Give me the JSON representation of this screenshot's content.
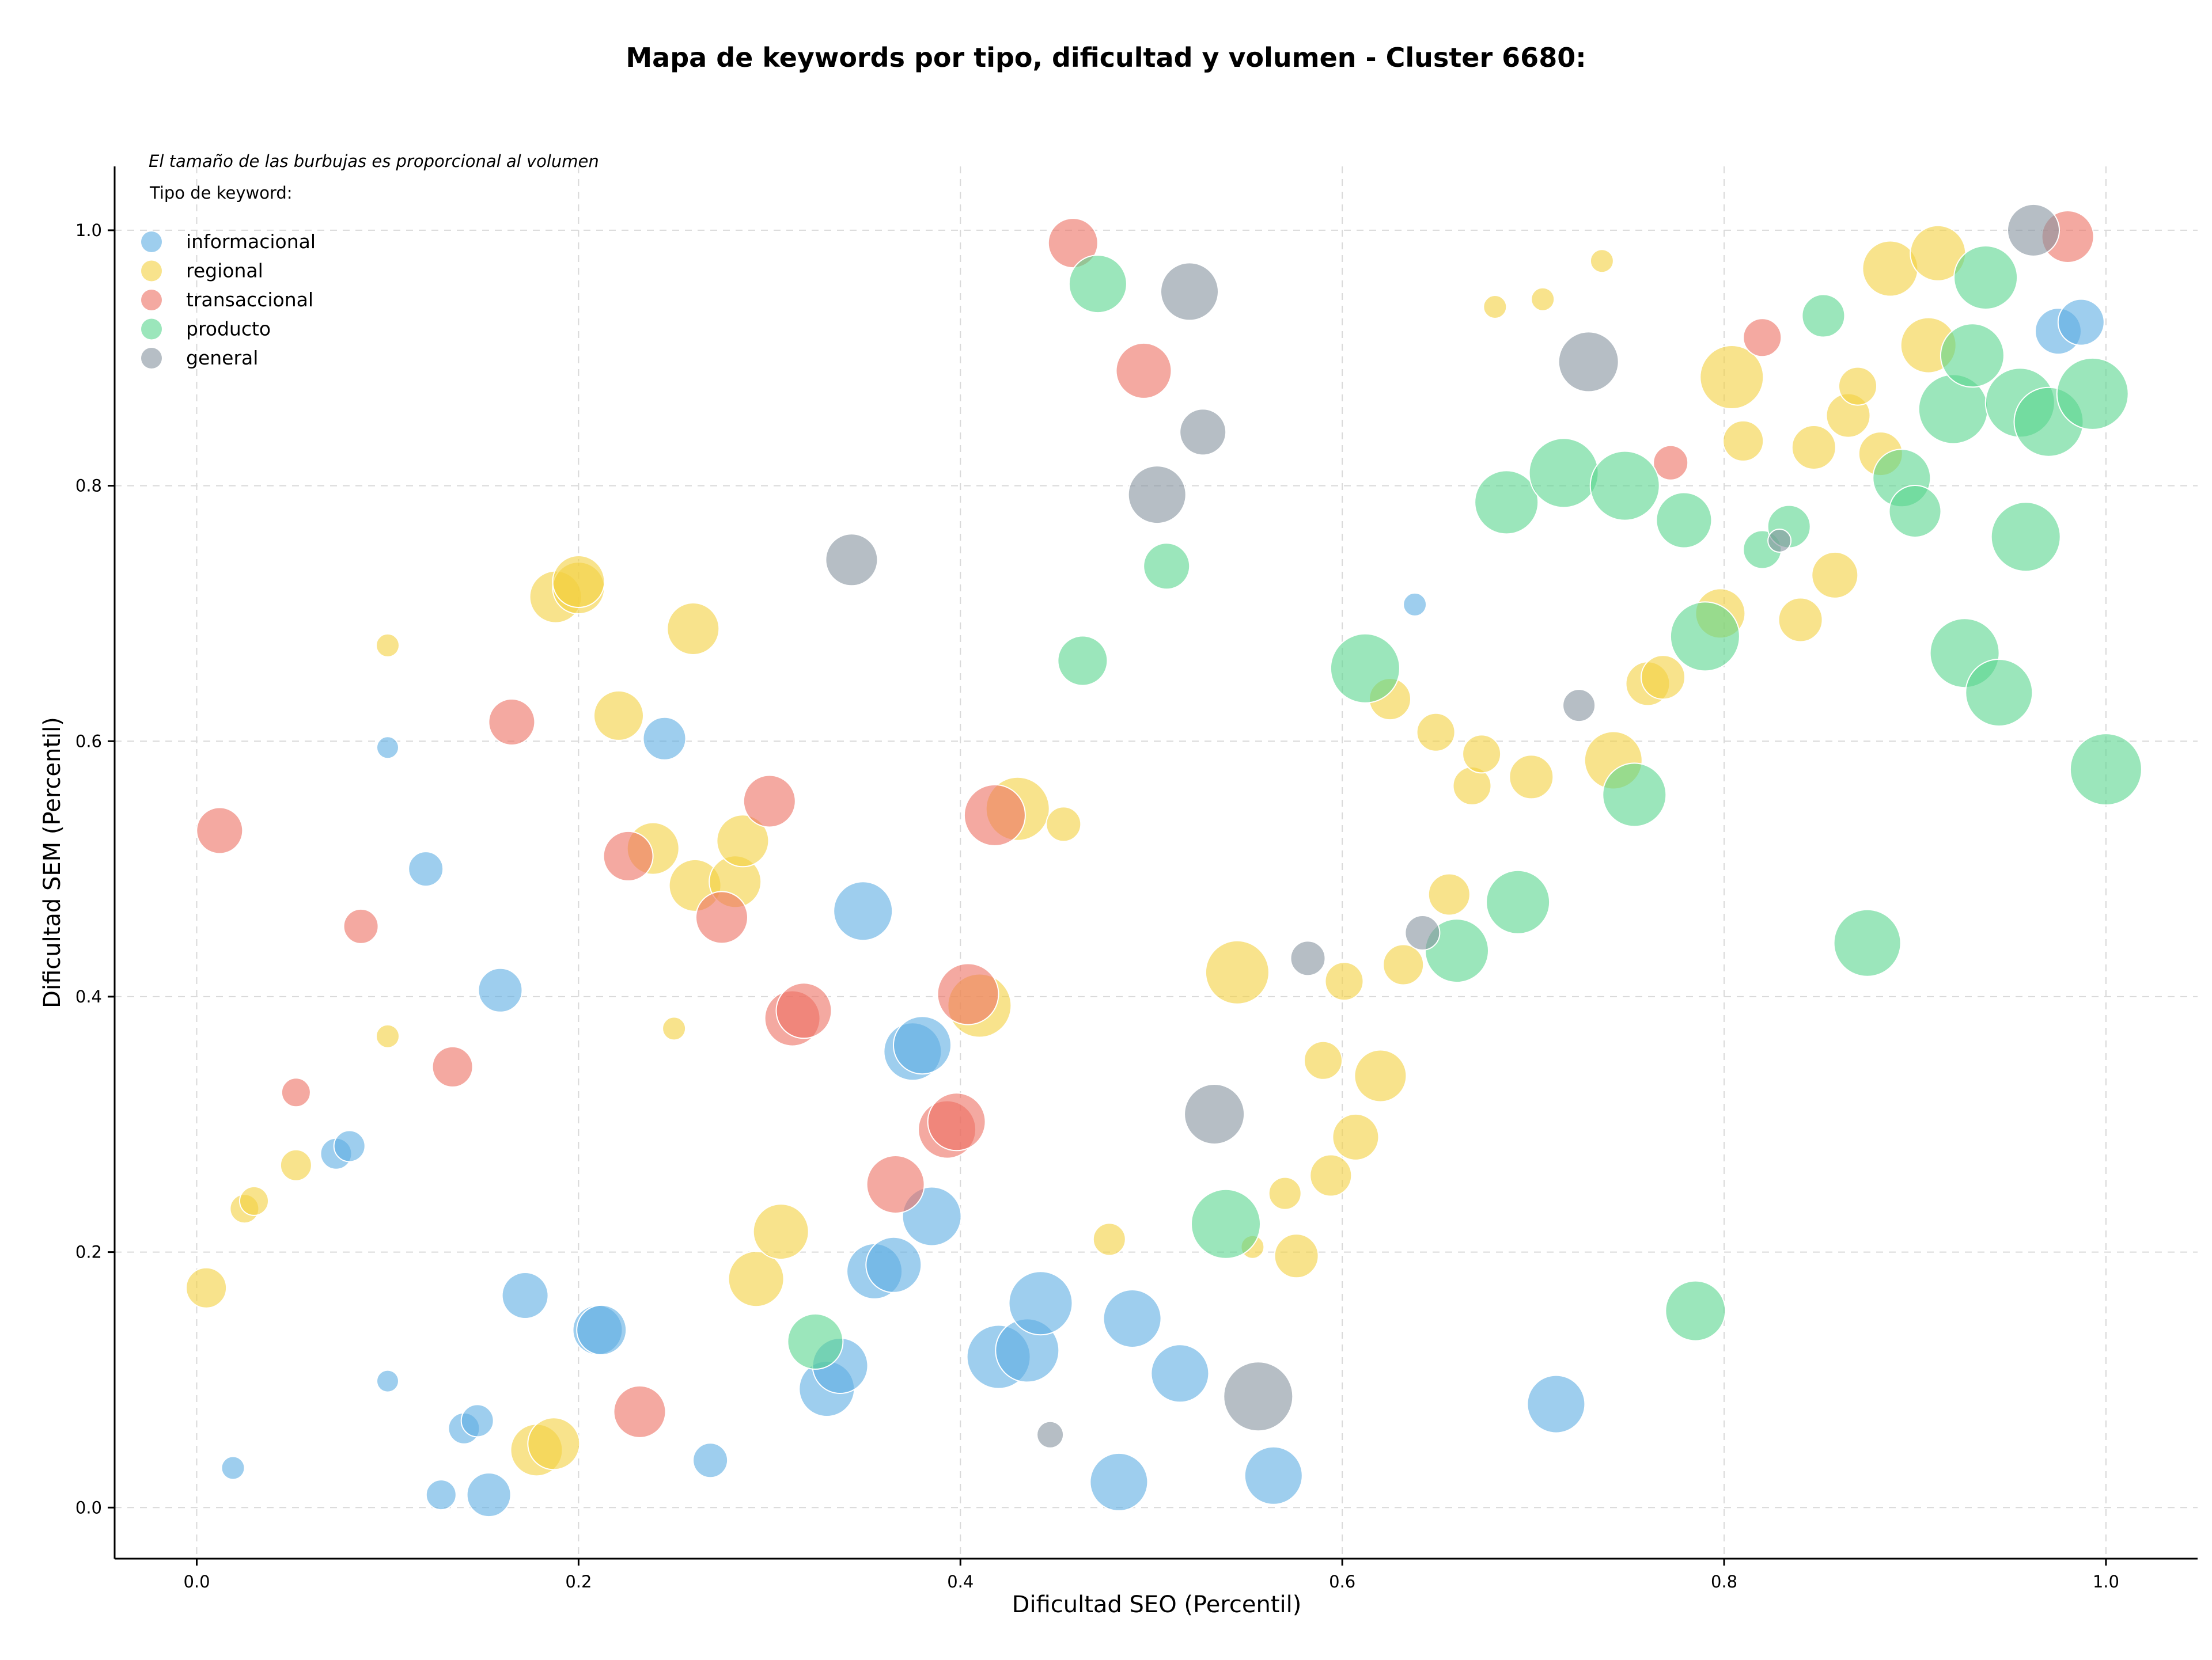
{
  "chart_data": {
    "type": "scatter",
    "title": "Mapa de keywords por tipo, dificultad y volumen - Cluster 6680:",
    "xlabel": "Dificultad SEO (Percentil)",
    "ylabel": "Dificultad SEM (Percentil)",
    "xlim": [
      -0.043,
      1.048
    ],
    "ylim": [
      -0.04,
      1.05
    ],
    "xticks": [
      0.0,
      0.2,
      0.4,
      0.6,
      0.8,
      1.0
    ],
    "yticks": [
      0.0,
      0.2,
      0.4,
      0.6,
      0.8,
      1.0
    ],
    "xtick_labels": [
      "0.0",
      "0.2",
      "0.4",
      "0.6",
      "0.8",
      "1.0"
    ],
    "ytick_labels": [
      "0.0",
      "0.2",
      "0.4",
      "0.6",
      "0.8",
      "1.0"
    ],
    "grid": true,
    "note": "El tamaño de las burbujas es proporcional al volumen",
    "legend_title": "Tipo de keyword:",
    "legend_position": "top-left",
    "series": [
      {
        "name": "informacional",
        "color": "#5DADE2",
        "points": [
          [
            0.019,
            0.031,
            20
          ],
          [
            0.1,
            0.595,
            19
          ],
          [
            0.1,
            0.099,
            19
          ],
          [
            0.12,
            0.5,
            30
          ],
          [
            0.073,
            0.277,
            27
          ],
          [
            0.08,
            0.283,
            27
          ],
          [
            0.128,
            0.01,
            26
          ],
          [
            0.14,
            0.062,
            27
          ],
          [
            0.147,
            0.068,
            28
          ],
          [
            0.153,
            0.01,
            38
          ],
          [
            0.159,
            0.405,
            38
          ],
          [
            0.172,
            0.166,
            40
          ],
          [
            0.21,
            0.139,
            43
          ],
          [
            0.212,
            0.139,
            43
          ],
          [
            0.245,
            0.602,
            37
          ],
          [
            0.269,
            0.037,
            30
          ],
          [
            0.33,
            0.093,
            48
          ],
          [
            0.337,
            0.111,
            48
          ],
          [
            0.349,
            0.467,
            51
          ],
          [
            0.355,
            0.185,
            48
          ],
          [
            0.365,
            0.19,
            48
          ],
          [
            0.375,
            0.357,
            50
          ],
          [
            0.38,
            0.362,
            50
          ],
          [
            0.385,
            0.228,
            51
          ],
          [
            0.42,
            0.118,
            55
          ],
          [
            0.435,
            0.123,
            55
          ],
          [
            0.442,
            0.16,
            55
          ],
          [
            0.483,
            0.02,
            50
          ],
          [
            0.49,
            0.148,
            50
          ],
          [
            0.515,
            0.105,
            50
          ],
          [
            0.564,
            0.025,
            50
          ],
          [
            0.638,
            0.707,
            20
          ],
          [
            0.712,
            0.081,
            50
          ],
          [
            0.975,
            0.921,
            40
          ],
          [
            0.987,
            0.928,
            40
          ]
        ]
      },
      {
        "name": "regional",
        "color": "#F4D03F",
        "points": [
          [
            0.005,
            0.172,
            35
          ],
          [
            0.025,
            0.234,
            25
          ],
          [
            0.03,
            0.24,
            25
          ],
          [
            0.052,
            0.268,
            27
          ],
          [
            0.1,
            0.675,
            20
          ],
          [
            0.1,
            0.369,
            20
          ],
          [
            0.178,
            0.045,
            45
          ],
          [
            0.187,
            0.05,
            45
          ],
          [
            0.188,
            0.713,
            45
          ],
          [
            0.2,
            0.72,
            45
          ],
          [
            0.2,
            0.725,
            45
          ],
          [
            0.221,
            0.62,
            43
          ],
          [
            0.239,
            0.516,
            45
          ],
          [
            0.25,
            0.375,
            20
          ],
          [
            0.26,
            0.688,
            45
          ],
          [
            0.261,
            0.487,
            45
          ],
          [
            0.282,
            0.49,
            45
          ],
          [
            0.286,
            0.522,
            45
          ],
          [
            0.293,
            0.179,
            48
          ],
          [
            0.306,
            0.216,
            48
          ],
          [
            0.43,
            0.547,
            55
          ],
          [
            0.41,
            0.393,
            55
          ],
          [
            0.454,
            0.535,
            30
          ],
          [
            0.478,
            0.21,
            28
          ],
          [
            0.545,
            0.419,
            55
          ],
          [
            0.553,
            0.204,
            20
          ],
          [
            0.57,
            0.246,
            28
          ],
          [
            0.576,
            0.197,
            38
          ],
          [
            0.59,
            0.35,
            33
          ],
          [
            0.594,
            0.26,
            36
          ],
          [
            0.601,
            0.412,
            33
          ],
          [
            0.607,
            0.29,
            40
          ],
          [
            0.62,
            0.338,
            45
          ],
          [
            0.625,
            0.633,
            36
          ],
          [
            0.632,
            0.425,
            35
          ],
          [
            0.649,
            0.607,
            33
          ],
          [
            0.656,
            0.48,
            36
          ],
          [
            0.668,
            0.565,
            33
          ],
          [
            0.673,
            0.59,
            33
          ],
          [
            0.68,
            0.94,
            20
          ],
          [
            0.699,
            0.572,
            38
          ],
          [
            0.705,
            0.946,
            20
          ],
          [
            0.736,
            0.976,
            20
          ],
          [
            0.742,
            0.585,
            50
          ],
          [
            0.76,
            0.645,
            38
          ],
          [
            0.768,
            0.65,
            38
          ],
          [
            0.798,
            0.7,
            43
          ],
          [
            0.804,
            0.885,
            55
          ],
          [
            0.81,
            0.835,
            35
          ],
          [
            0.84,
            0.695,
            38
          ],
          [
            0.847,
            0.83,
            38
          ],
          [
            0.858,
            0.73,
            40
          ],
          [
            0.865,
            0.855,
            38
          ],
          [
            0.87,
            0.878,
            33
          ],
          [
            0.882,
            0.825,
            38
          ],
          [
            0.887,
            0.97,
            48
          ],
          [
            0.907,
            0.91,
            48
          ],
          [
            0.912,
            0.982,
            48
          ]
        ]
      },
      {
        "name": "transaccional",
        "color": "#EC7063",
        "points": [
          [
            0.012,
            0.53,
            40
          ],
          [
            0.052,
            0.325,
            25
          ],
          [
            0.086,
            0.455,
            30
          ],
          [
            0.134,
            0.345,
            35
          ],
          [
            0.165,
            0.615,
            40
          ],
          [
            0.226,
            0.51,
            43
          ],
          [
            0.232,
            0.075,
            45
          ],
          [
            0.275,
            0.462,
            45
          ],
          [
            0.3,
            0.553,
            45
          ],
          [
            0.312,
            0.383,
            48
          ],
          [
            0.318,
            0.389,
            48
          ],
          [
            0.366,
            0.253,
            50
          ],
          [
            0.393,
            0.296,
            50
          ],
          [
            0.398,
            0.302,
            50
          ],
          [
            0.404,
            0.402,
            53
          ],
          [
            0.418,
            0.542,
            53
          ],
          [
            0.459,
            0.99,
            43
          ],
          [
            0.496,
            0.89,
            48
          ],
          [
            0.772,
            0.818,
            30
          ],
          [
            0.82,
            0.916,
            33
          ],
          [
            0.98,
            0.995,
            45
          ]
        ]
      },
      {
        "name": "producto",
        "color": "#58D68D",
        "points": [
          [
            0.324,
            0.13,
            48
          ],
          [
            0.464,
            0.663,
            43
          ],
          [
            0.472,
            0.958,
            50
          ],
          [
            0.508,
            0.737,
            40
          ],
          [
            0.539,
            0.222,
            60
          ],
          [
            0.612,
            0.657,
            60
          ],
          [
            0.66,
            0.436,
            55
          ],
          [
            0.686,
            0.787,
            55
          ],
          [
            0.692,
            0.474,
            55
          ],
          [
            0.716,
            0.81,
            60
          ],
          [
            0.748,
            0.8,
            60
          ],
          [
            0.753,
            0.558,
            55
          ],
          [
            0.779,
            0.773,
            48
          ],
          [
            0.785,
            0.154,
            52
          ],
          [
            0.79,
            0.682,
            60
          ],
          [
            0.82,
            0.75,
            33
          ],
          [
            0.834,
            0.768,
            37
          ],
          [
            0.852,
            0.933,
            37
          ],
          [
            0.875,
            0.442,
            58
          ],
          [
            0.893,
            0.806,
            50
          ],
          [
            0.9,
            0.78,
            45
          ],
          [
            0.92,
            0.86,
            60
          ],
          [
            0.926,
            0.669,
            60
          ],
          [
            0.93,
            0.902,
            55
          ],
          [
            0.937,
            0.963,
            55
          ],
          [
            0.944,
            0.638,
            58
          ],
          [
            0.955,
            0.865,
            60
          ],
          [
            0.958,
            0.76,
            60
          ],
          [
            0.97,
            0.85,
            60
          ],
          [
            0.993,
            0.872,
            62
          ],
          [
            1.0,
            0.578,
            62
          ]
        ]
      },
      {
        "name": "general",
        "color": "#85929E",
        "points": [
          [
            0.343,
            0.742,
            45
          ],
          [
            0.447,
            0.057,
            23
          ],
          [
            0.503,
            0.793,
            50
          ],
          [
            0.52,
            0.952,
            50
          ],
          [
            0.527,
            0.842,
            40
          ],
          [
            0.533,
            0.308,
            52
          ],
          [
            0.556,
            0.087,
            60
          ],
          [
            0.582,
            0.43,
            30
          ],
          [
            0.642,
            0.45,
            30
          ],
          [
            0.724,
            0.628,
            28
          ],
          [
            0.729,
            0.897,
            52
          ],
          [
            0.829,
            0.757,
            20
          ],
          [
            0.962,
            1.0,
            45
          ]
        ]
      }
    ]
  }
}
